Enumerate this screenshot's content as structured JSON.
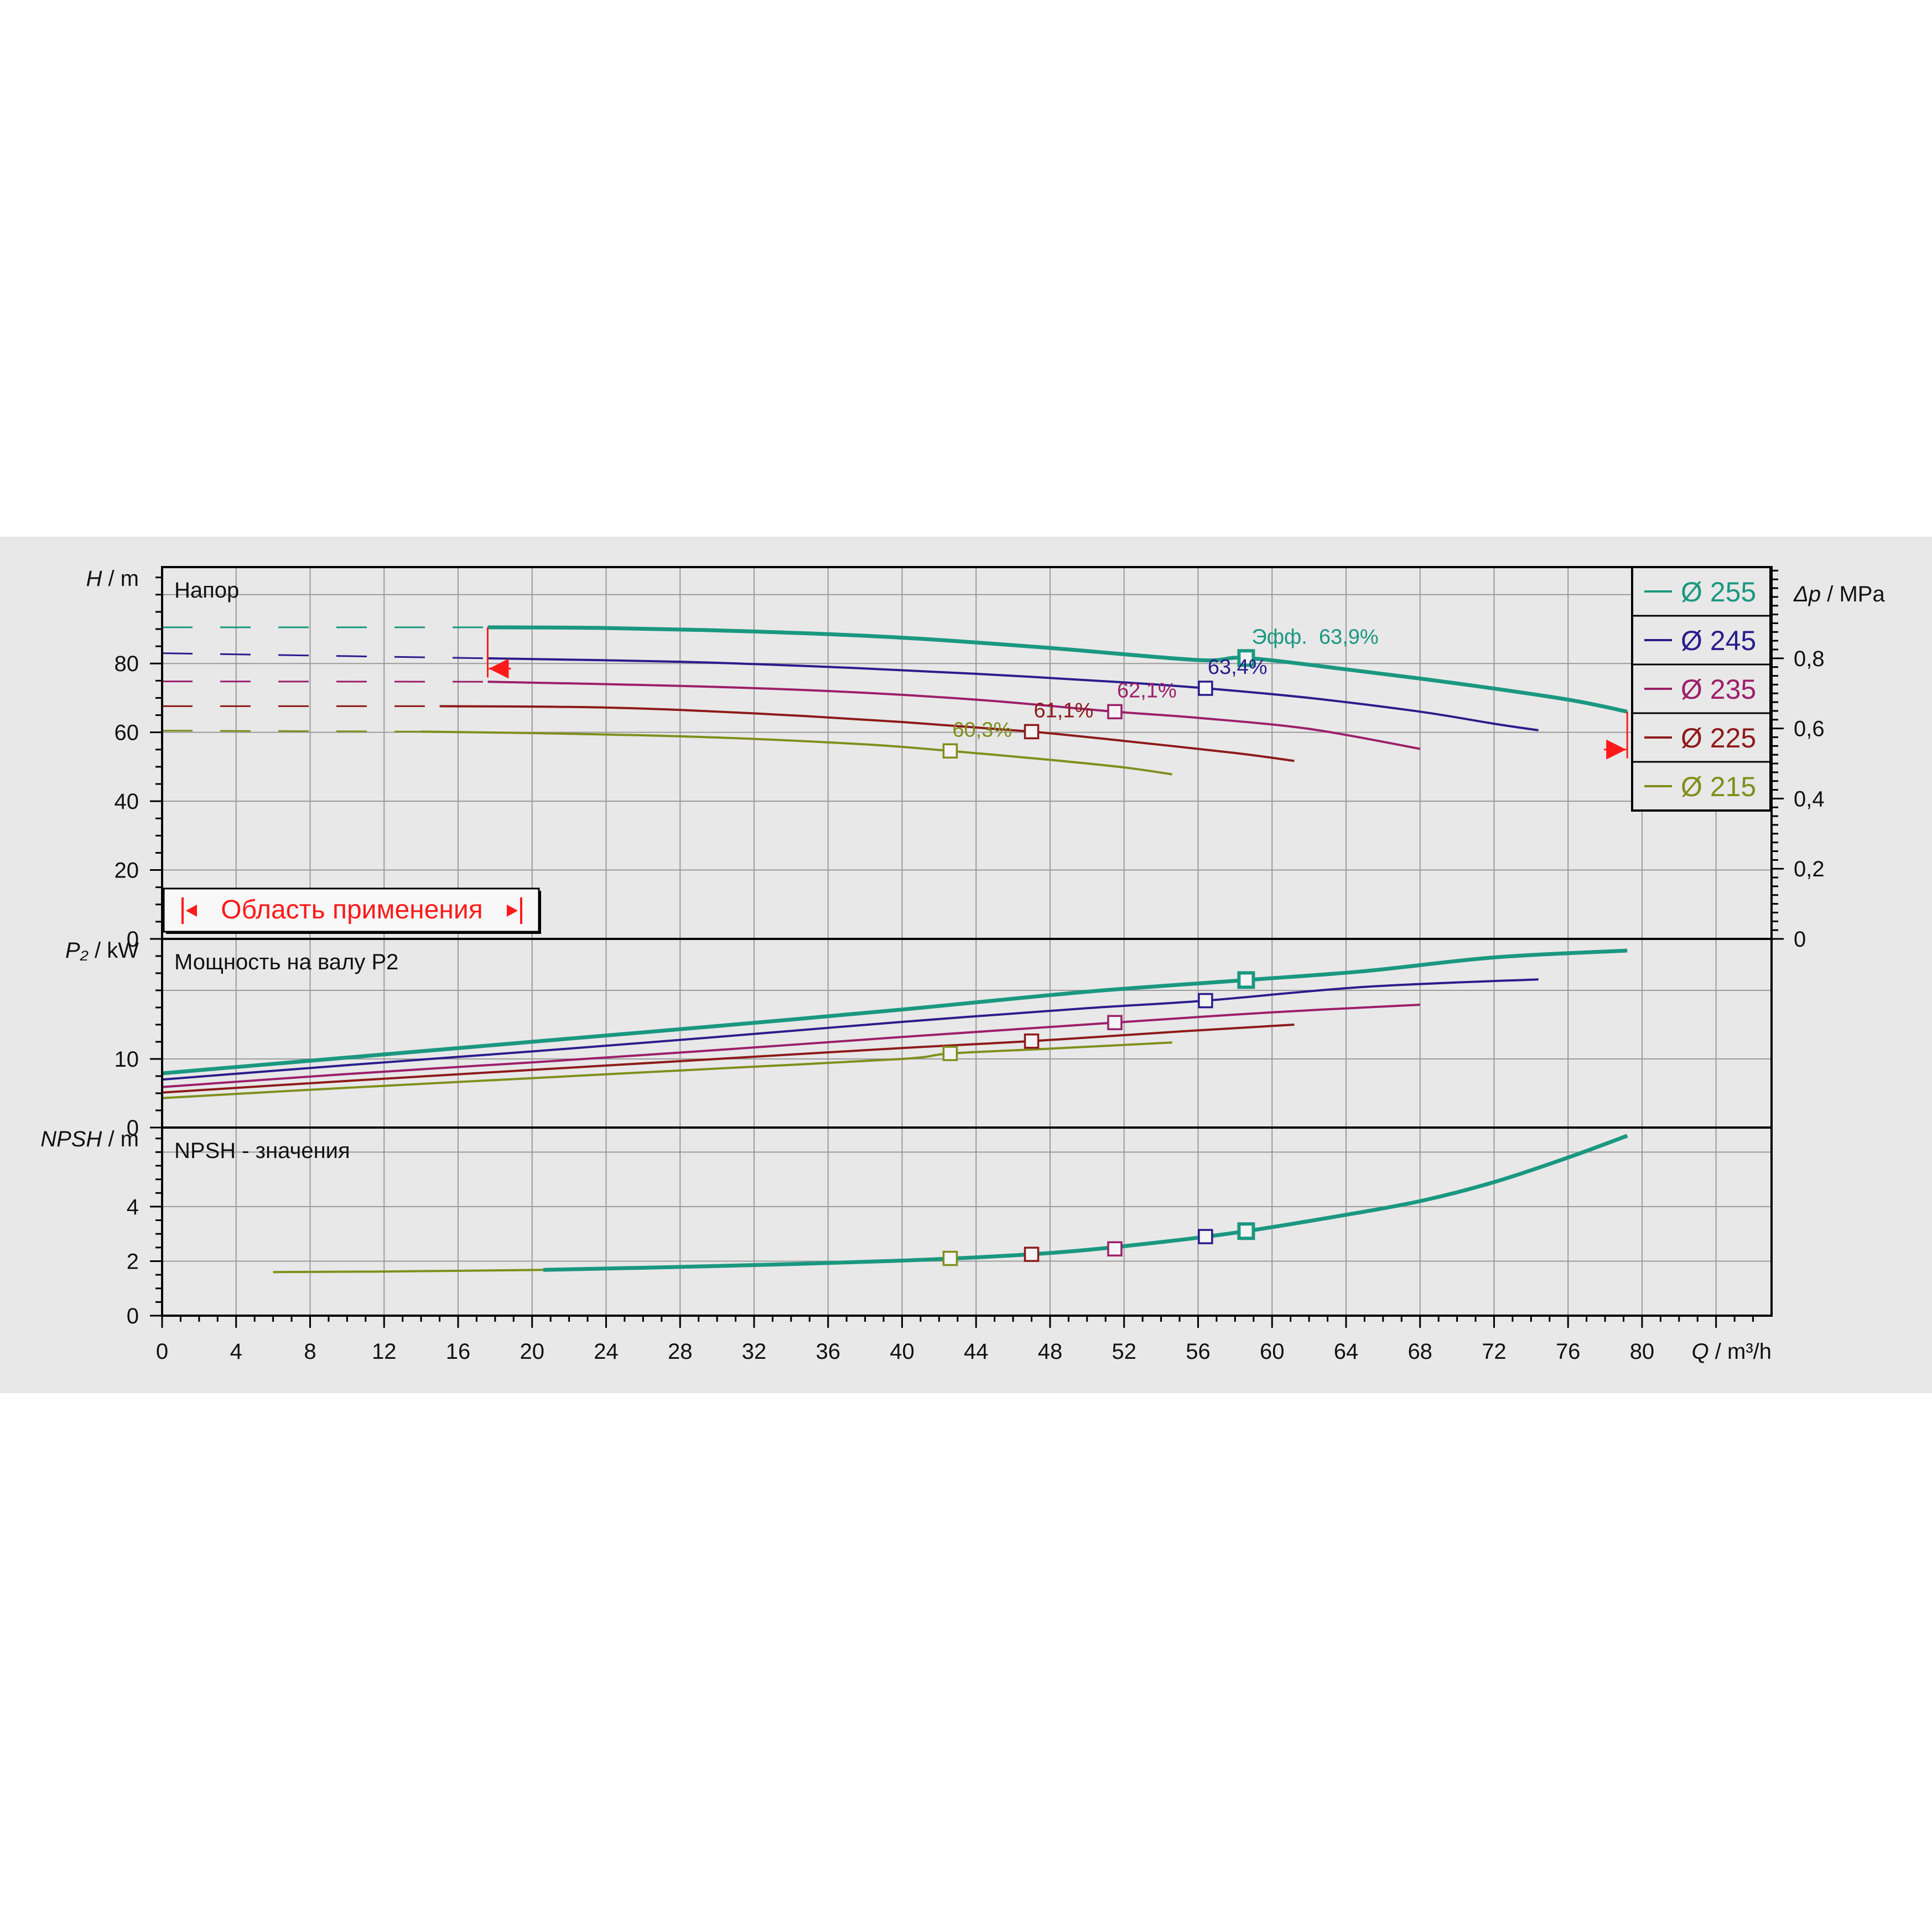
{
  "chart_data": {
    "type": "line",
    "x_axis": {
      "label_var": "Q",
      "label_unit": "m³/h",
      "range": [
        0,
        87
      ],
      "ticks": [
        0,
        4,
        8,
        12,
        16,
        20,
        24,
        28,
        32,
        36,
        40,
        44,
        48,
        52,
        56,
        60,
        64,
        68,
        72,
        76,
        80
      ]
    },
    "series_styles": [
      {
        "name": "Ø 255",
        "color": "#1a9880",
        "width": 7
      },
      {
        "name": "Ø 245",
        "color": "#2a1d8c",
        "width": 4
      },
      {
        "name": "Ø 235",
        "color": "#9c1f6a",
        "width": 4
      },
      {
        "name": "Ø 225",
        "color": "#8e1a1a",
        "width": 4
      },
      {
        "name": "Ø 215",
        "color": "#7f8f1c",
        "width": 4
      }
    ],
    "legend": {
      "position": "top-right",
      "items": [
        "Ø 255",
        "Ø 245",
        "Ø 235",
        "Ø 225",
        "Ø 215"
      ]
    },
    "head_plot": {
      "title": "Напор",
      "ylabel_var": "H",
      "ylabel_unit": "m",
      "ylim": [
        0,
        108
      ],
      "yticks": [
        0,
        20,
        40,
        60,
        80
      ],
      "y2label_var": "Δp",
      "y2label_unit": "MPa",
      "y2lim": [
        0,
        1.06
      ],
      "y2ticks": [
        "0",
        "0,2",
        "0,4",
        "0,6",
        "0,8"
      ],
      "y2tick_values": [
        0,
        0.2,
        0.4,
        0.6,
        0.8
      ],
      "application_range": {
        "label": "Область применения",
        "q_min": 17.6,
        "q_max": 79.2,
        "h_min": 78.5,
        "h_max": 55
      },
      "series": [
        {
          "name": "Ø 255",
          "dashed": [
            [
              0,
              90.5
            ],
            [
              17.6,
              90.5
            ]
          ],
          "points": [
            [
              17.6,
              90.5
            ],
            [
              24,
              90.3
            ],
            [
              32,
              89.3
            ],
            [
              40,
              87.5
            ],
            [
              48,
              84.5
            ],
            [
              56,
              81
            ],
            [
              58.6,
              81.6
            ],
            [
              64,
              78.3
            ],
            [
              70,
              74.2
            ],
            [
              76,
              69.5
            ],
            [
              79.2,
              66
            ]
          ],
          "bep": [
            58.6,
            81.6
          ],
          "bep_label": "Эфф.  63,9%"
        },
        {
          "name": "Ø 245",
          "dashed": [
            [
              0,
              83
            ],
            [
              17.6,
              81.5
            ]
          ],
          "points": [
            [
              17.6,
              81.5
            ],
            [
              28,
              80.5
            ],
            [
              36,
              79
            ],
            [
              44,
              77
            ],
            [
              52,
              74.5
            ],
            [
              56.4,
              72.8
            ],
            [
              62,
              70
            ],
            [
              68,
              66
            ],
            [
              72,
              62.5
            ],
            [
              74.4,
              60.6
            ]
          ],
          "bep": [
            56.4,
            72.8
          ],
          "bep_label": "63,4%"
        },
        {
          "name": "Ø 235",
          "dashed": [
            [
              0,
              74.8
            ],
            [
              17.6,
              74.7
            ]
          ],
          "points": [
            [
              17.6,
              74.7
            ],
            [
              28,
              73.5
            ],
            [
              36,
              72
            ],
            [
              44,
              69.5
            ],
            [
              51.5,
              66
            ],
            [
              56,
              64.2
            ],
            [
              62,
              61
            ],
            [
              68,
              55.2
            ]
          ],
          "bep": [
            51.5,
            66
          ],
          "bep_label": "62,1%"
        },
        {
          "name": "Ø 225",
          "dashed": [
            [
              0,
              67.6
            ],
            [
              15,
              67.6
            ]
          ],
          "points": [
            [
              15,
              67.6
            ],
            [
              24,
              67.2
            ],
            [
              32,
              65.5
            ],
            [
              40,
              63
            ],
            [
              47,
              60.2
            ],
            [
              52,
              57.5
            ],
            [
              58,
              54
            ],
            [
              61.2,
              51.7
            ]
          ],
          "bep": [
            47,
            60.2
          ],
          "bep_label": "61,1%"
        },
        {
          "name": "Ø 215",
          "dashed": [
            [
              0,
              60.5
            ],
            [
              14,
              60.2
            ]
          ],
          "points": [
            [
              14,
              60.2
            ],
            [
              22,
              59.6
            ],
            [
              30,
              58.5
            ],
            [
              38,
              56.5
            ],
            [
              42.6,
              54.6
            ],
            [
              48,
              52
            ],
            [
              52,
              49.8
            ],
            [
              54.6,
              47.8
            ]
          ],
          "bep": [
            42.6,
            54.6
          ],
          "bep_label": "60,3%"
        }
      ]
    },
    "power_plot": {
      "title": "Мощность на валу P2",
      "ylabel_var": "P₂",
      "ylabel_unit": "kW",
      "ylim": [
        0,
        27.5
      ],
      "yticks": [
        0,
        10
      ],
      "series": [
        {
          "name": "Ø 255",
          "points": [
            [
              0,
              7.9
            ],
            [
              10,
              10.2
            ],
            [
              20,
              12.5
            ],
            [
              30,
              14.8
            ],
            [
              40,
              17.2
            ],
            [
              50,
              19.8
            ],
            [
              58.6,
              21.5
            ],
            [
              65,
              22.8
            ],
            [
              72,
              24.8
            ],
            [
              79.2,
              25.8
            ]
          ],
          "bep": [
            58.6,
            21.5
          ]
        },
        {
          "name": "Ø 245",
          "points": [
            [
              0,
              7.0
            ],
            [
              10,
              9.1
            ],
            [
              20,
              11.1
            ],
            [
              30,
              13.2
            ],
            [
              40,
              15.4
            ],
            [
              50,
              17.4
            ],
            [
              56.4,
              18.5
            ],
            [
              65,
              20.5
            ],
            [
              74.4,
              21.6
            ]
          ],
          "bep": [
            56.4,
            18.5
          ]
        },
        {
          "name": "Ø 235",
          "points": [
            [
              0,
              5.9
            ],
            [
              10,
              7.8
            ],
            [
              20,
              9.5
            ],
            [
              30,
              11.3
            ],
            [
              40,
              13.2
            ],
            [
              51.5,
              15.3
            ],
            [
              60,
              16.8
            ],
            [
              68,
              17.9
            ]
          ],
          "bep": [
            51.5,
            15.3
          ]
        },
        {
          "name": "Ø 225",
          "points": [
            [
              0,
              5.1
            ],
            [
              10,
              6.8
            ],
            [
              20,
              8.4
            ],
            [
              30,
              10.0
            ],
            [
              40,
              11.6
            ],
            [
              47,
              12.6
            ],
            [
              55,
              14.0
            ],
            [
              61.2,
              15.0
            ]
          ],
          "bep": [
            47,
            12.6
          ]
        },
        {
          "name": "Ø 215",
          "points": [
            [
              0,
              4.3
            ],
            [
              10,
              5.8
            ],
            [
              20,
              7.2
            ],
            [
              30,
              8.6
            ],
            [
              40,
              10.0
            ],
            [
              42.6,
              10.8
            ],
            [
              48,
              11.5
            ],
            [
              54.6,
              12.4
            ]
          ],
          "bep": [
            42.6,
            10.8
          ]
        }
      ]
    },
    "npsh_plot": {
      "title": "NPSH - значения",
      "ylabel_var": "NPSH",
      "ylabel_unit": "m",
      "ylim": [
        0,
        6.9
      ],
      "yticks": [
        0,
        2,
        4
      ],
      "series": [
        {
          "name": "Ø 255",
          "points": [
            [
              20.6,
              1.68
            ],
            [
              30,
              1.82
            ],
            [
              40,
              2.02
            ],
            [
              48,
              2.3
            ],
            [
              54,
              2.7
            ],
            [
              58.6,
              3.1
            ],
            [
              64,
              3.7
            ],
            [
              68,
              4.2
            ],
            [
              72,
              4.9
            ],
            [
              76,
              5.8
            ],
            [
              79.2,
              6.6
            ]
          ]
        },
        {
          "name": "Ø 215",
          "points": [
            [
              6,
              1.6
            ],
            [
              12,
              1.62
            ],
            [
              20.6,
              1.68
            ]
          ]
        }
      ],
      "bep_markers": [
        {
          "name": "Ø 255",
          "point": [
            58.6,
            3.1
          ]
        },
        {
          "name": "Ø 245",
          "point": [
            56.4,
            2.9
          ]
        },
        {
          "name": "Ø 235",
          "point": [
            51.5,
            2.45
          ]
        },
        {
          "name": "Ø 225",
          "point": [
            47,
            2.25
          ]
        },
        {
          "name": "Ø 215",
          "point": [
            42.6,
            2.1
          ]
        }
      ]
    }
  }
}
